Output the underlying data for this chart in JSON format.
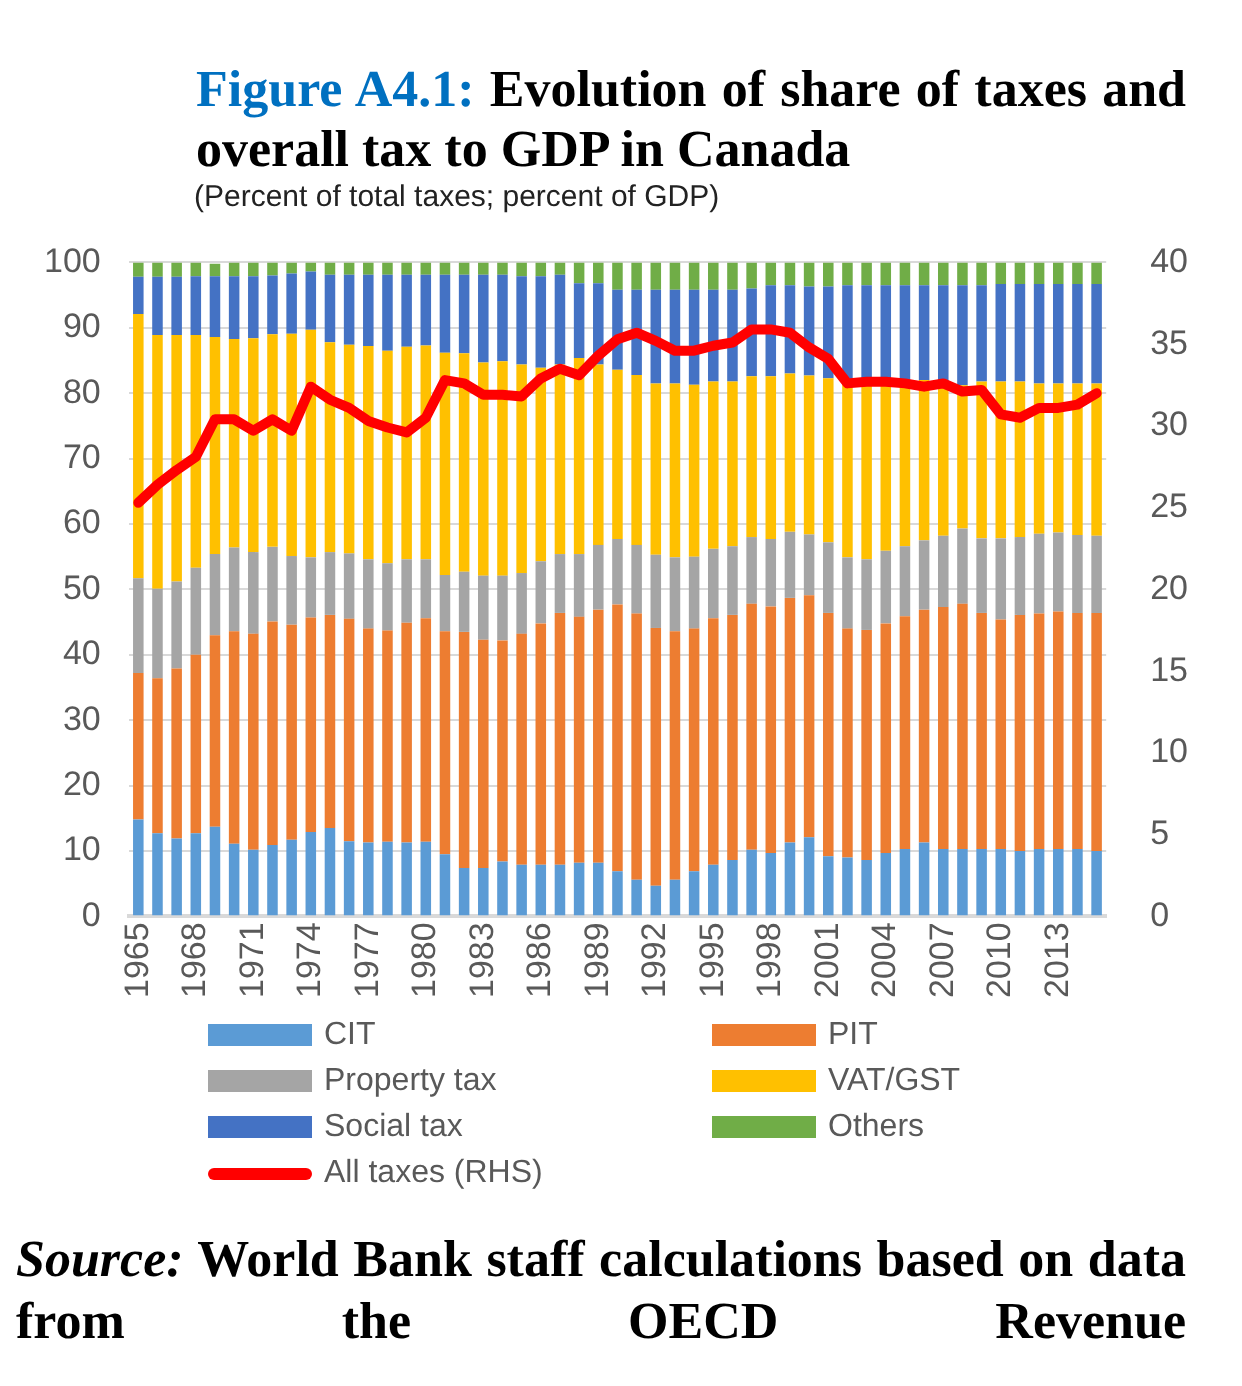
{
  "chart_data": {
    "type": "bar",
    "title": "Figure A4.1: Evolution of share of taxes and overall tax to GDP in Canada",
    "subtitle": "(Percent of total taxes; percent of GDP)",
    "annotations": [
      "Source: World Bank staff calculations based on data from the OECD Revenue"
    ],
    "categories": [
      "1965",
      null,
      null,
      "1968",
      null,
      null,
      "1971",
      null,
      null,
      "1974",
      null,
      null,
      "1977",
      null,
      null,
      "1980",
      null,
      null,
      "1983",
      null,
      null,
      "1986",
      null,
      null,
      "1989",
      null,
      null,
      "1992",
      null,
      null,
      "1995",
      null,
      null,
      "1998",
      null,
      null,
      "2001",
      null,
      null,
      "2004",
      null,
      null,
      "2007",
      null,
      null,
      "2010",
      null,
      null,
      "2013",
      null,
      null
    ],
    "stacked": true,
    "grid": "y",
    "legend": "bottom",
    "ylim": [
      0,
      100
    ],
    "yticks": [
      0,
      10,
      20,
      30,
      40,
      50,
      60,
      70,
      80,
      90,
      100
    ],
    "y2lim": [
      0,
      40
    ],
    "y2ticks": [
      0,
      5,
      10,
      15,
      20,
      25,
      30,
      35,
      40
    ],
    "series": [
      {
        "name": "CIT",
        "color": "#5b9bd5",
        "values": [
          14.8,
          12.7,
          11.9,
          12.7,
          13.7,
          11.1,
          10.2,
          10.9,
          11.7,
          12.9,
          13.5,
          11.5,
          11.3,
          11.4,
          11.3,
          11.4,
          9.5,
          7.4,
          7.4,
          8.4,
          7.9,
          7.9,
          7.9,
          8.2,
          8.2,
          6.9,
          5.6,
          4.7,
          5.6,
          6.9,
          7.9,
          8.6,
          10.2,
          9.7,
          11.3,
          12.1,
          9.2,
          9.0,
          8.6,
          9.7,
          10.3,
          11.3,
          10.3,
          10.3,
          10.3,
          10.3,
          10.0,
          10.3,
          10.3,
          10.3,
          10.0
        ]
      },
      {
        "name": "PIT",
        "color": "#ed7d31",
        "values": [
          22.4,
          23.7,
          26.0,
          27.3,
          29.3,
          32.5,
          33.0,
          34.2,
          32.9,
          32.8,
          32.6,
          34.0,
          32.7,
          32.3,
          33.6,
          34.2,
          34.1,
          36.1,
          34.9,
          33.8,
          35.3,
          36.9,
          38.5,
          37.6,
          38.7,
          40.8,
          40.7,
          39.4,
          38.0,
          37.1,
          37.7,
          37.5,
          37.6,
          37.7,
          37.4,
          37.0,
          37.2,
          35.0,
          35.2,
          35.1,
          35.6,
          35.6,
          37.0,
          37.5,
          36.1,
          35.1,
          36.1,
          36.0,
          36.3,
          36.1,
          36.4
        ]
      },
      {
        "name": "Property tax",
        "color": "#a5a5a5",
        "values": [
          14.5,
          13.7,
          13.3,
          13.3,
          12.4,
          12.8,
          12.5,
          11.4,
          10.5,
          9.2,
          9.6,
          10.0,
          10.6,
          10.3,
          9.7,
          9.0,
          8.6,
          9.2,
          9.8,
          9.9,
          9.3,
          9.5,
          9.0,
          9.6,
          9.9,
          10.0,
          10.5,
          11.2,
          11.3,
          11.0,
          10.6,
          10.5,
          10.2,
          10.3,
          10.1,
          9.3,
          10.8,
          10.9,
          10.8,
          11.1,
          10.7,
          10.6,
          10.9,
          11.5,
          11.4,
          12.4,
          11.9,
          12.2,
          12.1,
          11.9,
          11.8
        ]
      },
      {
        "name": "VAT/GST",
        "color": "#ffc000",
        "values": [
          40.4,
          38.8,
          37.7,
          35.6,
          33.2,
          31.9,
          32.7,
          32.5,
          34.0,
          34.8,
          32.1,
          31.9,
          32.6,
          32.5,
          32.5,
          32.7,
          34.0,
          33.4,
          32.6,
          32.8,
          31.9,
          29.6,
          29.0,
          30.0,
          27.6,
          25.9,
          26.0,
          26.2,
          26.6,
          26.3,
          25.6,
          25.2,
          24.6,
          24.9,
          24.2,
          24.3,
          25.1,
          26.9,
          27.2,
          25.9,
          25.2,
          24.5,
          23.6,
          21.9,
          24.0,
          24.0,
          23.8,
          23.0,
          22.8,
          23.2,
          23.3
        ]
      },
      {
        "name": "Social tax",
        "color": "#4472c4",
        "values": [
          5.7,
          8.9,
          8.9,
          9.0,
          9.3,
          9.6,
          9.5,
          9.0,
          9.2,
          8.9,
          10.3,
          10.7,
          10.9,
          11.6,
          11.0,
          10.8,
          11.9,
          12.0,
          13.4,
          13.2,
          13.5,
          14.0,
          13.7,
          11.4,
          12.4,
          12.2,
          13.0,
          14.3,
          14.3,
          14.5,
          14.0,
          14.0,
          13.4,
          13.9,
          13.5,
          13.6,
          14.0,
          14.7,
          14.7,
          14.7,
          14.7,
          14.5,
          14.7,
          15.3,
          14.7,
          14.9,
          14.9,
          15.2,
          15.2,
          15.2,
          15.2
        ]
      },
      {
        "name": "Others",
        "color": "#70ad47",
        "values": [
          2.2,
          2.2,
          2.2,
          2.1,
          1.9,
          2.1,
          2.1,
          2.0,
          1.7,
          1.4,
          1.9,
          1.9,
          1.9,
          1.9,
          1.9,
          1.9,
          1.9,
          1.9,
          1.9,
          1.9,
          2.1,
          2.1,
          1.9,
          3.2,
          3.2,
          4.2,
          4.2,
          4.2,
          4.2,
          4.2,
          4.2,
          4.2,
          4.0,
          3.5,
          3.5,
          3.7,
          3.7,
          3.5,
          3.5,
          3.5,
          3.5,
          3.5,
          3.5,
          3.5,
          3.5,
          3.3,
          3.3,
          3.3,
          3.3,
          3.3,
          3.3
        ]
      },
      {
        "name": "All taxes (RHS)",
        "type": "line",
        "axis": "y2",
        "color": "#ff0000",
        "values": [
          25.3,
          26.4,
          27.3,
          28.1,
          30.4,
          30.4,
          29.7,
          30.4,
          29.7,
          32.4,
          31.6,
          31.1,
          30.3,
          29.9,
          29.6,
          30.5,
          32.8,
          32.6,
          31.9,
          31.9,
          31.8,
          32.9,
          33.5,
          33.1,
          34.3,
          35.3,
          35.7,
          35.2,
          34.6,
          34.6,
          34.9,
          35.1,
          35.9,
          35.9,
          35.7,
          34.8,
          34.1,
          32.6,
          32.7,
          32.7,
          32.6,
          32.4,
          32.6,
          32.1,
          32.2,
          30.7,
          30.5,
          31.1,
          31.1,
          31.3,
          32.0
        ]
      }
    ]
  }
}
